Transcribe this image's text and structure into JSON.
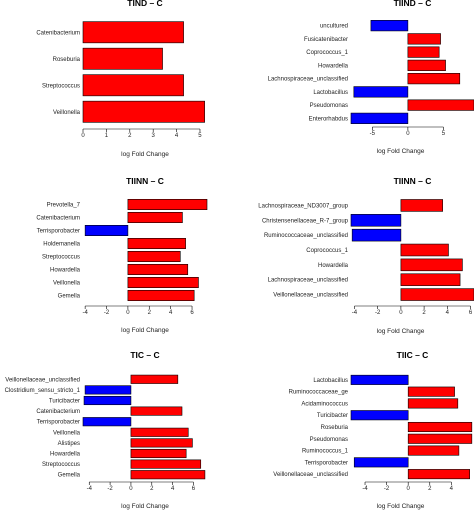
{
  "colors": {
    "positive": "#ff0000",
    "negative": "#0000ff",
    "axis": "#000000",
    "text": "#222222"
  },
  "chart_data": [
    {
      "type": "bar",
      "orientation": "horizontal",
      "title": "TIND – C",
      "xlabel": "log Fold Change",
      "xlim": [
        0,
        5.3
      ],
      "ticks": [
        0,
        1,
        2,
        3,
        4,
        5
      ],
      "categories": [
        "Catenibacterium",
        "Roseburia",
        "Streptococcus",
        "Veillonella"
      ],
      "values": [
        4.3,
        3.4,
        4.3,
        5.2
      ]
    },
    {
      "type": "bar",
      "orientation": "horizontal",
      "title": "TIIND – C",
      "xlabel": "log Fold Change",
      "xlim": [
        -8,
        9.3
      ],
      "ticks": [
        -5,
        0,
        5
      ],
      "categories": [
        "uncultured",
        "Fusicatenibacter",
        "Coprococcus_1",
        "Howardella",
        "Lachnospiraceae_unclassified",
        "Lactobacillus",
        "Pseudomonas",
        "Enterorhabdus"
      ],
      "values": [
        -5.2,
        4.6,
        4.4,
        5.3,
        7.3,
        -7.6,
        9.3,
        -8.0
      ]
    },
    {
      "type": "bar",
      "orientation": "horizontal",
      "title": "TIINN – C",
      "xlabel": "log Fold Change",
      "xlim": [
        -4.2,
        7.4
      ],
      "ticks": [
        -4,
        -2,
        0,
        2,
        4,
        6
      ],
      "categories": [
        "Prevotella_7",
        "Catenibacterium",
        "Terrisporobacter",
        "Holdemanella",
        "Streptococcus",
        "Howardella",
        "Veillonella",
        "Gemella"
      ],
      "values": [
        7.4,
        5.1,
        -4.0,
        5.4,
        4.9,
        5.6,
        6.6,
        6.2
      ]
    },
    {
      "type": "bar",
      "orientation": "horizontal",
      "title": "TIINN – C",
      "xlabel": "log Fold Change",
      "xlim": [
        -4.3,
        6.3
      ],
      "ticks": [
        -4,
        -2,
        0,
        2,
        4,
        6
      ],
      "categories": [
        "Lachnospiraceae_ND3007_group",
        "Christensenellaceae_R-7_group",
        "Ruminococcaceae_unclassified",
        "Coprococcus_1",
        "Howardella",
        "Lachnospiraceae_unclassified",
        "Veillonellaceae_unclassified"
      ],
      "values": [
        3.6,
        -4.3,
        -4.2,
        4.1,
        5.3,
        5.1,
        6.3
      ]
    },
    {
      "type": "bar",
      "orientation": "horizontal",
      "title": "TIC – C",
      "xlabel": "log Fold Change",
      "xlim": [
        -4.6,
        7.3
      ],
      "ticks": [
        -4,
        -2,
        0,
        2,
        4,
        6
      ],
      "categories": [
        "Veillonellaceae_unclassified",
        "Clostridium_sensu_stricto_1",
        "Turicibacter",
        "Catenibacterium",
        "Terrisporobacter",
        "Veillonella",
        "Alistipes",
        "Howardella",
        "Streptococcus",
        "Gemella"
      ],
      "values": [
        4.5,
        -4.4,
        -4.5,
        4.9,
        -4.6,
        5.5,
        5.9,
        5.3,
        6.7,
        7.1
      ]
    },
    {
      "type": "bar",
      "orientation": "horizontal",
      "title": "TIIC – C",
      "xlabel": "log Fold Change",
      "xlim": [
        -5.3,
        6.1
      ],
      "ticks": [
        -4,
        -2,
        0,
        2,
        4
      ],
      "categories": [
        "Lactobacillus",
        "Ruminococcaceae_ge",
        "Acidaminococcus",
        "Turicibacter",
        "Roseburia",
        "Pseudomonas",
        "Ruminococcus_1",
        "Terrisporobacter",
        "Veillonellaceae_unclassified"
      ],
      "values": [
        -5.3,
        4.3,
        4.6,
        -5.3,
        5.9,
        5.9,
        4.7,
        -5.0,
        5.7
      ]
    }
  ]
}
